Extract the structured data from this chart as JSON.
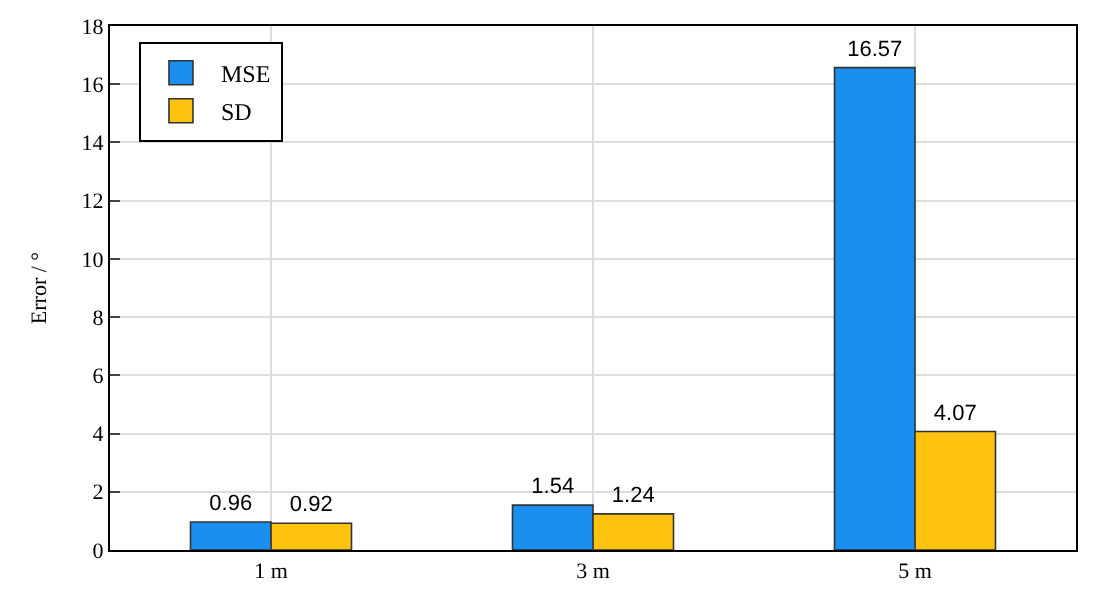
{
  "chart_data": {
    "type": "bar",
    "ylabel": "Error / °",
    "categories": [
      "1 m",
      "3 m",
      "5 m"
    ],
    "series": [
      {
        "name": "MSE",
        "color": "#1a8ff0",
        "values": [
          0.96,
          1.54,
          16.57
        ]
      },
      {
        "name": "SD",
        "color": "#ffc20e",
        "values": [
          0.92,
          1.24,
          4.07
        ]
      }
    ],
    "ylim": [
      0,
      18
    ],
    "yticks": [
      0,
      2,
      4,
      6,
      8,
      10,
      12,
      14,
      16,
      18
    ],
    "grid": true,
    "legend": "top left",
    "data_labels": true
  }
}
